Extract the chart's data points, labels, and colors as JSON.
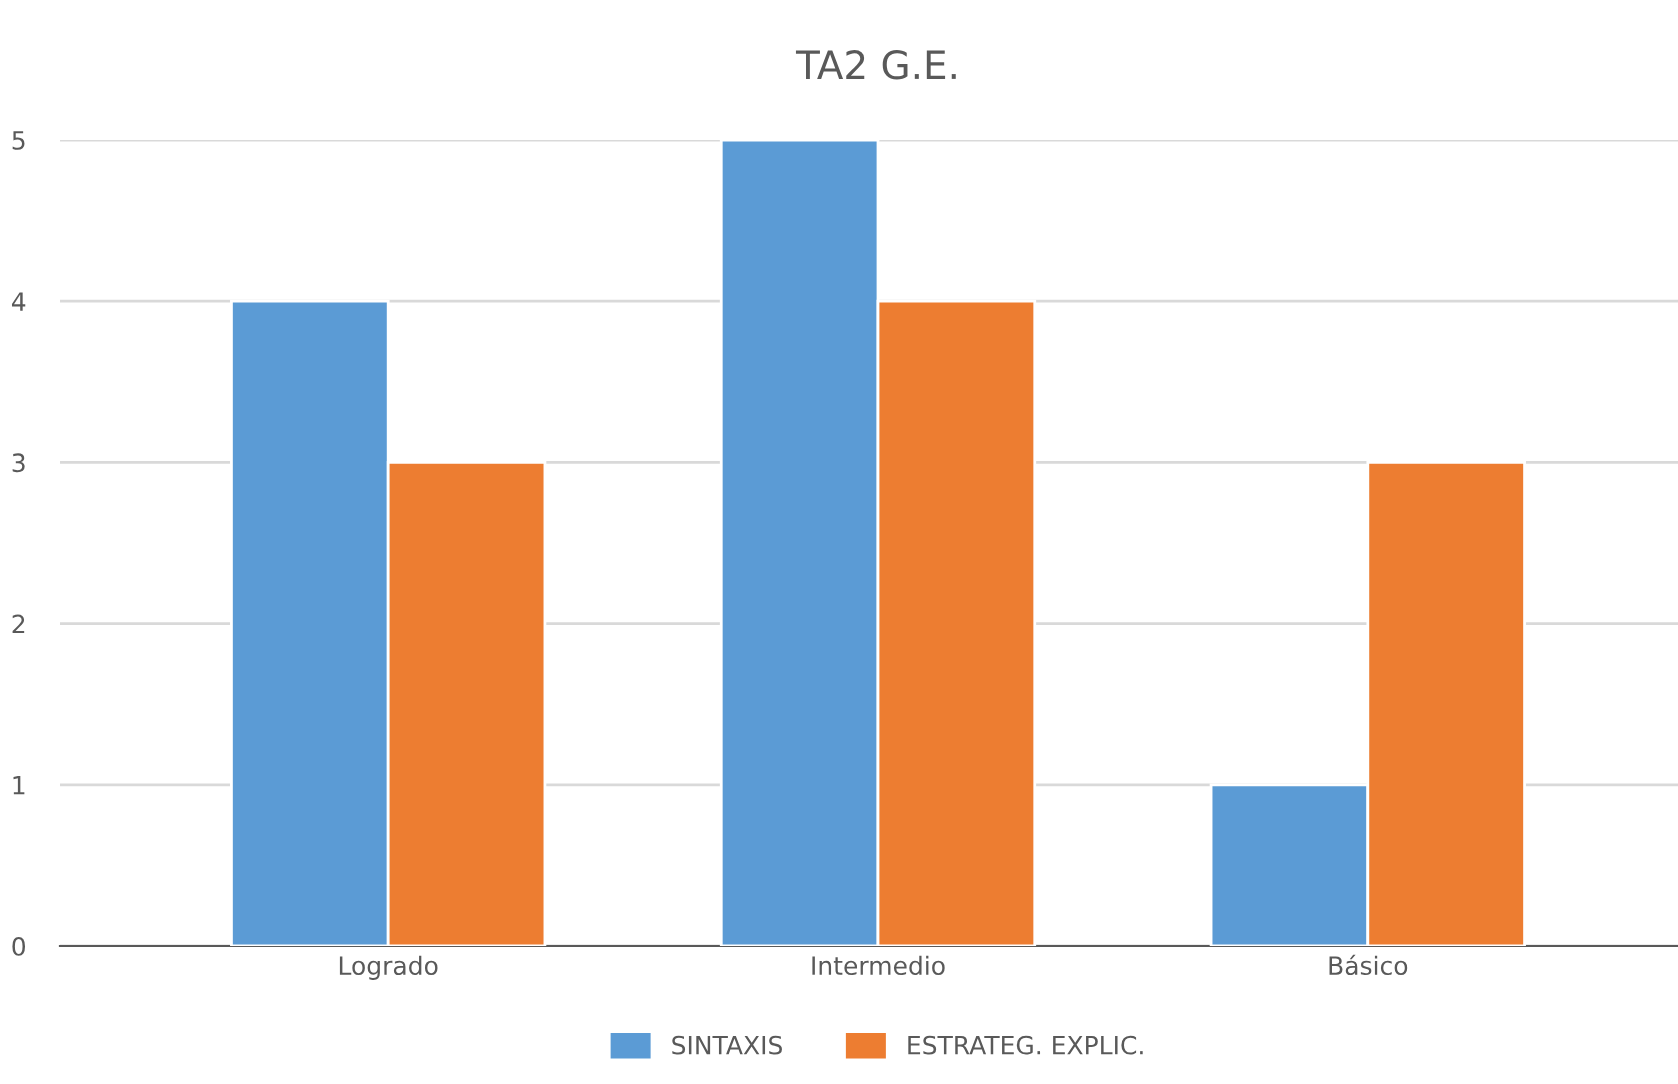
{
  "chart_data": {
    "type": "bar",
    "title": "TA2 G.E.",
    "categories": [
      "Logrado",
      "Intermedio",
      "Básico"
    ],
    "series": [
      {
        "name": "SINTAXIS",
        "color": "#5b9bd5",
        "values": [
          4,
          5,
          1
        ]
      },
      {
        "name": "ESTRATEG. EXPLIC.",
        "color": "#ed7d31",
        "values": [
          3,
          4,
          3
        ]
      }
    ],
    "ylim": [
      0,
      5
    ],
    "yticks": [
      0,
      1,
      2,
      3,
      4,
      5
    ],
    "grid": "y",
    "legend": "bottom"
  }
}
